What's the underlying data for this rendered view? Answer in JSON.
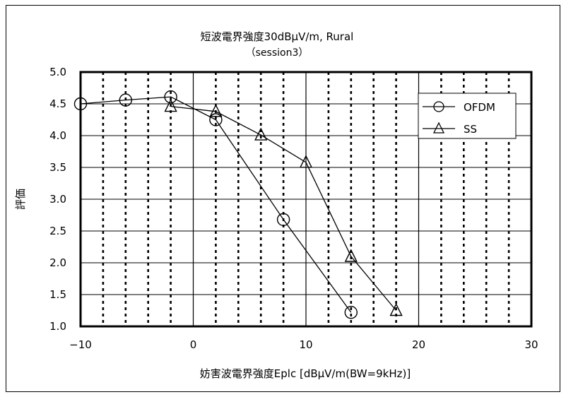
{
  "chart_data": {
    "type": "line",
    "title": "短波電界強度30dBμV/m, Rural",
    "subtitle": "（session3）",
    "xlabel": "妨害波電界強度Eplc [dBμV/m(BW=9kHz)]",
    "ylabel": "評価",
    "xlim": [
      -10,
      30
    ],
    "ylim": [
      1.0,
      5.0
    ],
    "x_ticks": [
      -10,
      0,
      10,
      20,
      30
    ],
    "x_tick_labels": [
      "−10",
      "0",
      "10",
      "20",
      "30"
    ],
    "y_ticks": [
      1.0,
      1.5,
      2.0,
      2.5,
      3.0,
      3.5,
      4.0,
      4.5,
      5.0
    ],
    "y_tick_labels": [
      "1.0",
      "1.5",
      "2.0",
      "2.5",
      "3.0",
      "3.5",
      "4.0",
      "4.5",
      "5.0"
    ],
    "grid": {
      "major_x": true,
      "minor_x_dotted": true,
      "major_y": true
    },
    "legend_position": "top-right",
    "series": [
      {
        "name": "OFDM",
        "marker": "circle",
        "x": [
          -10,
          -6,
          -2,
          2,
          8,
          14
        ],
        "y": [
          4.5,
          4.56,
          4.61,
          4.25,
          2.68,
          1.22
        ]
      },
      {
        "name": "SS",
        "marker": "triangle",
        "x": [
          -2,
          2,
          6,
          10,
          14,
          18
        ],
        "y": [
          4.46,
          4.38,
          4.01,
          3.58,
          2.1,
          1.25
        ]
      }
    ]
  }
}
